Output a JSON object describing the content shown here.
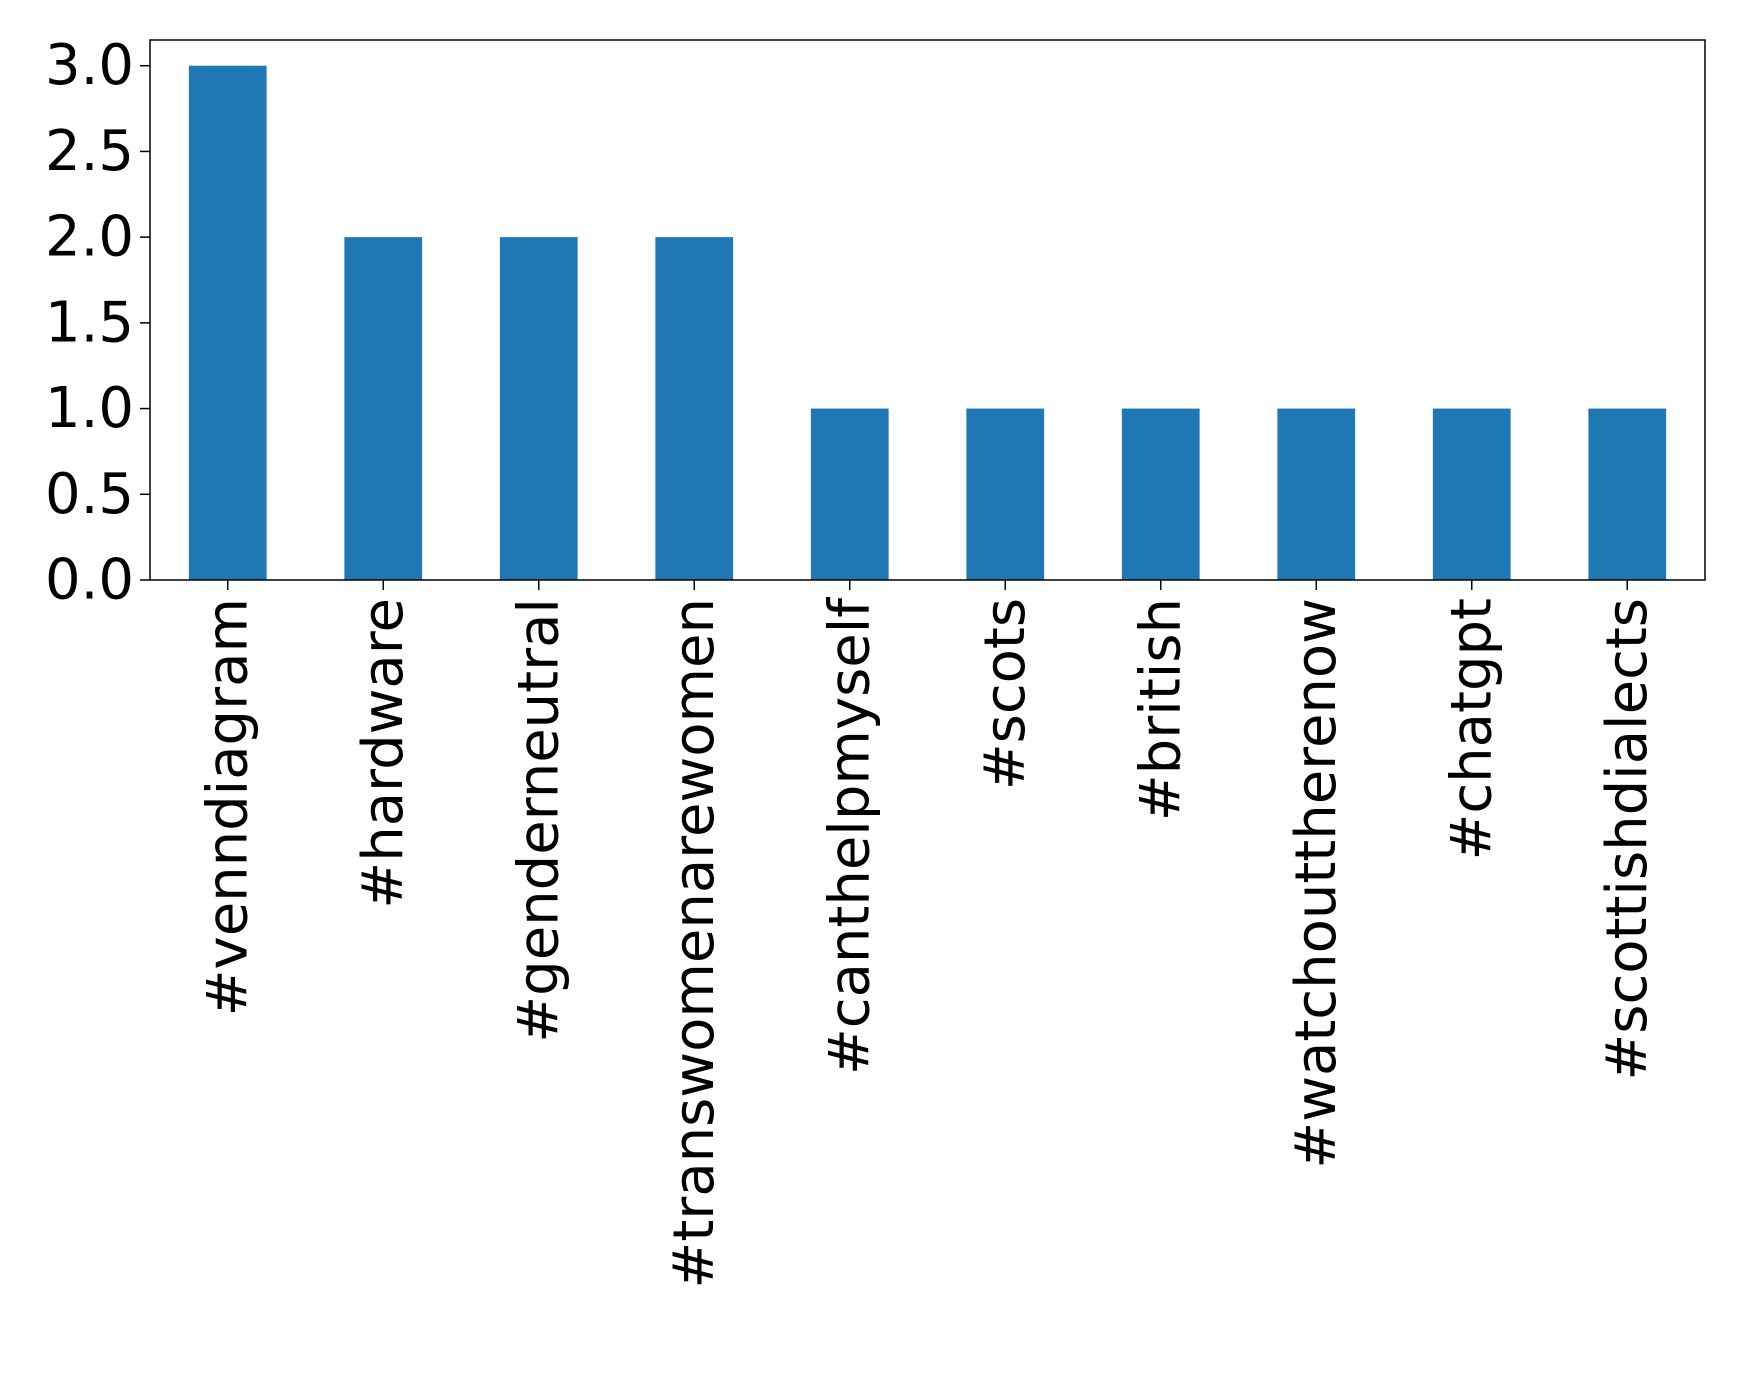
{
  "chart_data": {
    "type": "bar",
    "categories": [
      "#venndiagram",
      "#hardware",
      "#genderneutral",
      "#transwomenarewomen",
      "#canthelpmyself",
      "#scots",
      "#british",
      "#watchouttherenow",
      "#chatgpt",
      "#scottishdialects"
    ],
    "values": [
      3,
      2,
      2,
      2,
      1,
      1,
      1,
      1,
      1,
      1
    ],
    "title": "",
    "xlabel": "",
    "ylabel": "",
    "ylim": [
      0,
      3.15
    ],
    "yticks": [
      "0.0",
      "0.5",
      "1.0",
      "1.5",
      "2.0",
      "2.5",
      "3.0"
    ],
    "bar_color": "#1f77b4",
    "grid": false,
    "legend": false
  }
}
